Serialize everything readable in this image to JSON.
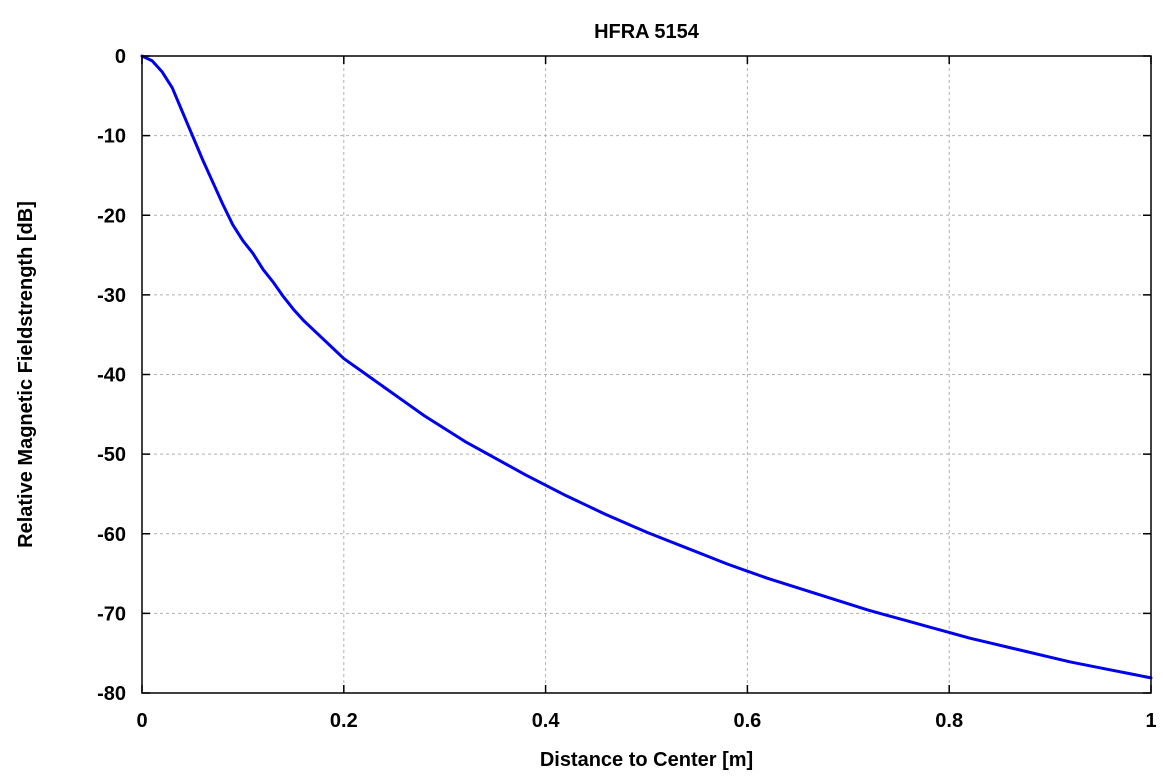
{
  "chart_data": {
    "type": "line",
    "title": "HFRA 5154",
    "xlabel": "Distance to Center [m]",
    "ylabel": "Relative Magnetic Fieldstrength [dB]",
    "xlim": [
      0,
      1
    ],
    "ylim": [
      -80,
      0
    ],
    "xticks": [
      0,
      0.2,
      0.4,
      0.6,
      0.8,
      1
    ],
    "xtick_labels": [
      "0",
      "0.2",
      "0.4",
      "0.6",
      "0.8",
      "1"
    ],
    "yticks": [
      0,
      -10,
      -20,
      -30,
      -40,
      -50,
      -60,
      -70,
      -80
    ],
    "ytick_labels": [
      "0",
      "-10",
      "-20",
      "-30",
      "-40",
      "-50",
      "-60",
      "-70",
      "-80"
    ],
    "grid": true,
    "series": [
      {
        "color": "#0000ee",
        "x": [
          0,
          0.01,
          0.02,
          0.03,
          0.04,
          0.05,
          0.06,
          0.07,
          0.08,
          0.09,
          0.1,
          0.11,
          0.12,
          0.13,
          0.14,
          0.15,
          0.16,
          0.17,
          0.18,
          0.19,
          0.2,
          0.22,
          0.24,
          0.26,
          0.28,
          0.3,
          0.32,
          0.34,
          0.36,
          0.38,
          0.4,
          0.42,
          0.44,
          0.46,
          0.48,
          0.5,
          0.52,
          0.54,
          0.56,
          0.58,
          0.6,
          0.62,
          0.64,
          0.66,
          0.68,
          0.7,
          0.72,
          0.74,
          0.76,
          0.78,
          0.8,
          0.82,
          0.84,
          0.86,
          0.88,
          0.9,
          0.92,
          0.94,
          0.96,
          0.98,
          1.0
        ],
        "y": [
          0,
          -0.6,
          -2,
          -4,
          -7,
          -10,
          -13,
          -15.8,
          -18.6,
          -21.2,
          -23.2,
          -24.8,
          -26.8,
          -28.4,
          -30.2,
          -31.8,
          -33.2,
          -34.4,
          -35.6,
          -36.8,
          -38,
          -39.8,
          -41.6,
          -43.4,
          -45.2,
          -46.8,
          -48.4,
          -49.8,
          -51.2,
          -52.6,
          -53.9,
          -55.2,
          -56.4,
          -57.6,
          -58.7,
          -59.8,
          -60.8,
          -61.8,
          -62.8,
          -63.8,
          -64.7,
          -65.6,
          -66.4,
          -67.2,
          -68.0,
          -68.8,
          -69.6,
          -70.3,
          -71.0,
          -71.7,
          -72.4,
          -73.1,
          -73.7,
          -74.3,
          -74.9,
          -75.5,
          -76.1,
          -76.6,
          -77.1,
          -77.6,
          -78.1
        ]
      }
    ]
  }
}
